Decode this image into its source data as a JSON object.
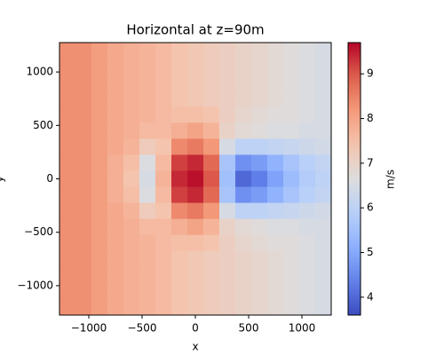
{
  "chart_data": {
    "type": "heatmap",
    "title": "Horizontal at z=90m",
    "xlabel": "x",
    "ylabel": "y",
    "colorbar_label": "m/s",
    "colormap": "coolwarm",
    "x": [
      -1200,
      -1050,
      -900,
      -750,
      -600,
      -450,
      -300,
      -150,
      0,
      150,
      300,
      450,
      600,
      750,
      900,
      1050,
      1200
    ],
    "y": [
      1200,
      1050,
      900,
      750,
      600,
      450,
      300,
      150,
      0,
      -150,
      -300,
      -450,
      -600,
      -750,
      -900,
      -1050,
      -1200
    ],
    "z": [
      [
        8.3,
        8.3,
        8.1,
        7.9,
        7.8,
        7.7,
        7.6,
        7.4,
        7.3,
        7.2,
        7.1,
        7.0,
        6.9,
        6.8,
        6.7,
        6.6,
        6.5
      ],
      [
        8.3,
        8.3,
        8.1,
        7.9,
        7.8,
        7.7,
        7.6,
        7.4,
        7.3,
        7.2,
        7.1,
        7.0,
        6.9,
        6.8,
        6.7,
        6.6,
        6.5
      ],
      [
        8.3,
        8.3,
        8.1,
        7.9,
        7.8,
        7.7,
        7.6,
        7.4,
        7.3,
        7.2,
        7.1,
        7.0,
        6.9,
        6.8,
        6.7,
        6.6,
        6.5
      ],
      [
        8.3,
        8.3,
        8.1,
        7.9,
        7.8,
        7.7,
        7.6,
        7.4,
        7.3,
        7.2,
        7.1,
        7.0,
        6.9,
        6.8,
        6.7,
        6.6,
        6.5
      ],
      [
        8.3,
        8.3,
        8.1,
        7.9,
        7.8,
        7.7,
        7.6,
        7.5,
        7.5,
        7.4,
        7.1,
        6.9,
        6.8,
        6.7,
        6.7,
        6.6,
        6.5
      ],
      [
        8.3,
        8.3,
        8.1,
        7.9,
        7.8,
        7.6,
        7.6,
        7.8,
        8.0,
        7.7,
        7.0,
        6.8,
        6.7,
        6.6,
        6.6,
        6.5,
        6.5
      ],
      [
        8.3,
        8.3,
        8.1,
        7.9,
        7.7,
        7.2,
        7.4,
        8.4,
        8.6,
        8.2,
        6.5,
        6.0,
        6.0,
        6.1,
        6.2,
        6.3,
        6.4
      ],
      [
        8.3,
        8.3,
        8.1,
        7.8,
        7.5,
        6.6,
        7.6,
        9.2,
        9.4,
        8.8,
        5.6,
        4.6,
        4.8,
        5.2,
        5.6,
        5.9,
        6.1
      ],
      [
        8.3,
        8.3,
        8.1,
        7.8,
        7.4,
        6.5,
        7.7,
        9.4,
        9.6,
        9.0,
        5.5,
        4.0,
        4.3,
        4.9,
        5.4,
        5.8,
        6.0
      ],
      [
        8.3,
        8.3,
        8.1,
        7.8,
        7.5,
        6.6,
        7.6,
        9.2,
        9.4,
        8.8,
        5.6,
        4.6,
        4.8,
        5.2,
        5.6,
        5.9,
        6.1
      ],
      [
        8.3,
        8.3,
        8.1,
        7.9,
        7.7,
        7.2,
        7.4,
        8.4,
        8.6,
        8.2,
        6.5,
        6.0,
        6.0,
        6.1,
        6.2,
        6.3,
        6.4
      ],
      [
        8.3,
        8.3,
        8.1,
        7.9,
        7.8,
        7.6,
        7.6,
        7.8,
        8.0,
        7.7,
        7.0,
        6.8,
        6.7,
        6.6,
        6.6,
        6.5,
        6.5
      ],
      [
        8.3,
        8.3,
        8.1,
        7.9,
        7.8,
        7.7,
        7.6,
        7.5,
        7.5,
        7.4,
        7.1,
        6.9,
        6.8,
        6.7,
        6.7,
        6.6,
        6.5
      ],
      [
        8.3,
        8.3,
        8.1,
        7.9,
        7.8,
        7.7,
        7.6,
        7.4,
        7.3,
        7.2,
        7.1,
        7.0,
        6.9,
        6.8,
        6.7,
        6.6,
        6.5
      ],
      [
        8.3,
        8.3,
        8.1,
        7.9,
        7.8,
        7.7,
        7.6,
        7.4,
        7.3,
        7.2,
        7.1,
        7.0,
        6.9,
        6.8,
        6.7,
        6.6,
        6.5
      ],
      [
        8.3,
        8.3,
        8.1,
        7.9,
        7.8,
        7.7,
        7.6,
        7.4,
        7.3,
        7.2,
        7.1,
        7.0,
        6.9,
        6.8,
        6.7,
        6.6,
        6.5
      ],
      [
        8.3,
        8.3,
        8.1,
        7.9,
        7.8,
        7.7,
        7.6,
        7.4,
        7.3,
        7.2,
        7.1,
        7.0,
        6.9,
        6.8,
        6.7,
        6.6,
        6.5
      ]
    ],
    "xlim": [
      -1275,
      1275
    ],
    "ylim": [
      -1275,
      1275
    ],
    "xticks": [
      {
        "value": -1000,
        "label": "−1000"
      },
      {
        "value": -500,
        "label": "−500"
      },
      0,
      500,
      1000
    ],
    "yticks": [
      {
        "value": -1000,
        "label": "−1000"
      },
      {
        "value": -500,
        "label": "−500"
      },
      0,
      500,
      1000
    ],
    "clim": [
      3.6,
      9.7
    ],
    "cticks": [
      4,
      5,
      6,
      7,
      8,
      9
    ]
  }
}
